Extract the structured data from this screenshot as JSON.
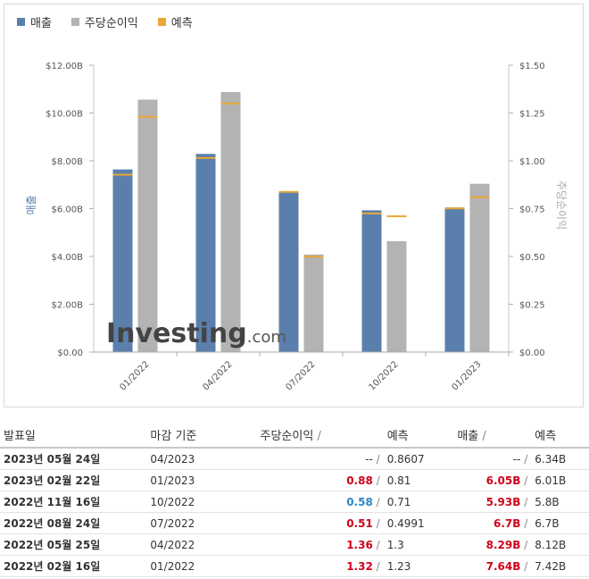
{
  "legend": {
    "revenue": "매출",
    "eps": "주당순이익",
    "forecast": "예측"
  },
  "colors": {
    "revenue": "#5b7fad",
    "eps": "#b3b3b3",
    "forecast": "#e8a835"
  },
  "chart_data": {
    "type": "bar",
    "categories": [
      "01/2022",
      "04/2022",
      "07/2022",
      "10/2022",
      "01/2023"
    ],
    "left_axis": {
      "label": "매출",
      "ticks": [
        "$0.00",
        "$2.00B",
        "$4.00B",
        "$6.00B",
        "$8.00B",
        "$10.00B",
        "$12.00B"
      ],
      "ylim": [
        0,
        12
      ]
    },
    "right_axis": {
      "label": "주당순이익",
      "ticks": [
        "$0.00",
        "$0.25",
        "$0.50",
        "$0.75",
        "$1.00",
        "$1.25",
        "$1.50"
      ],
      "ylim": [
        0,
        1.5
      ]
    },
    "series": [
      {
        "name": "매출",
        "axis": "left",
        "values": [
          7.64,
          8.29,
          6.7,
          5.93,
          6.05
        ],
        "forecast": [
          7.42,
          8.12,
          6.7,
          5.8,
          6.01
        ]
      },
      {
        "name": "주당순이익",
        "axis": "right",
        "values": [
          1.32,
          1.36,
          0.51,
          0.58,
          0.88
        ],
        "forecast": [
          1.23,
          1.3,
          0.4991,
          0.71,
          0.81
        ]
      }
    ],
    "watermark": "Investing.com"
  },
  "table": {
    "headers": {
      "date": "발표일",
      "period": "마감 기준",
      "eps": "주당순이익",
      "eps_forecast": "예측",
      "revenue": "매출",
      "revenue_forecast": "예측"
    },
    "separator": "/",
    "rows": [
      {
        "date": "2023년 05월 24일",
        "period": "04/2023",
        "eps": "--",
        "eps_class": "gray",
        "eps_f": "0.8607",
        "rev": "--",
        "rev_class": "gray",
        "rev_f": "6.34B"
      },
      {
        "date": "2023년 02월 22일",
        "period": "01/2023",
        "eps": "0.88",
        "eps_class": "red",
        "eps_f": "0.81",
        "rev": "6.05B",
        "rev_class": "red",
        "rev_f": "6.01B"
      },
      {
        "date": "2022년 11월 16일",
        "period": "10/2022",
        "eps": "0.58",
        "eps_class": "blue",
        "eps_f": "0.71",
        "rev": "5.93B",
        "rev_class": "red",
        "rev_f": "5.8B"
      },
      {
        "date": "2022년 08월 24일",
        "period": "07/2022",
        "eps": "0.51",
        "eps_class": "red",
        "eps_f": "0.4991",
        "rev": "6.7B",
        "rev_class": "red",
        "rev_f": "6.7B"
      },
      {
        "date": "2022년 05월 25일",
        "period": "04/2022",
        "eps": "1.36",
        "eps_class": "red",
        "eps_f": "1.3",
        "rev": "8.29B",
        "rev_class": "red",
        "rev_f": "8.12B"
      },
      {
        "date": "2022년 02월 16일",
        "period": "01/2022",
        "eps": "1.32",
        "eps_class": "red",
        "eps_f": "1.23",
        "rev": "7.64B",
        "rev_class": "red",
        "rev_f": "7.42B"
      }
    ]
  }
}
